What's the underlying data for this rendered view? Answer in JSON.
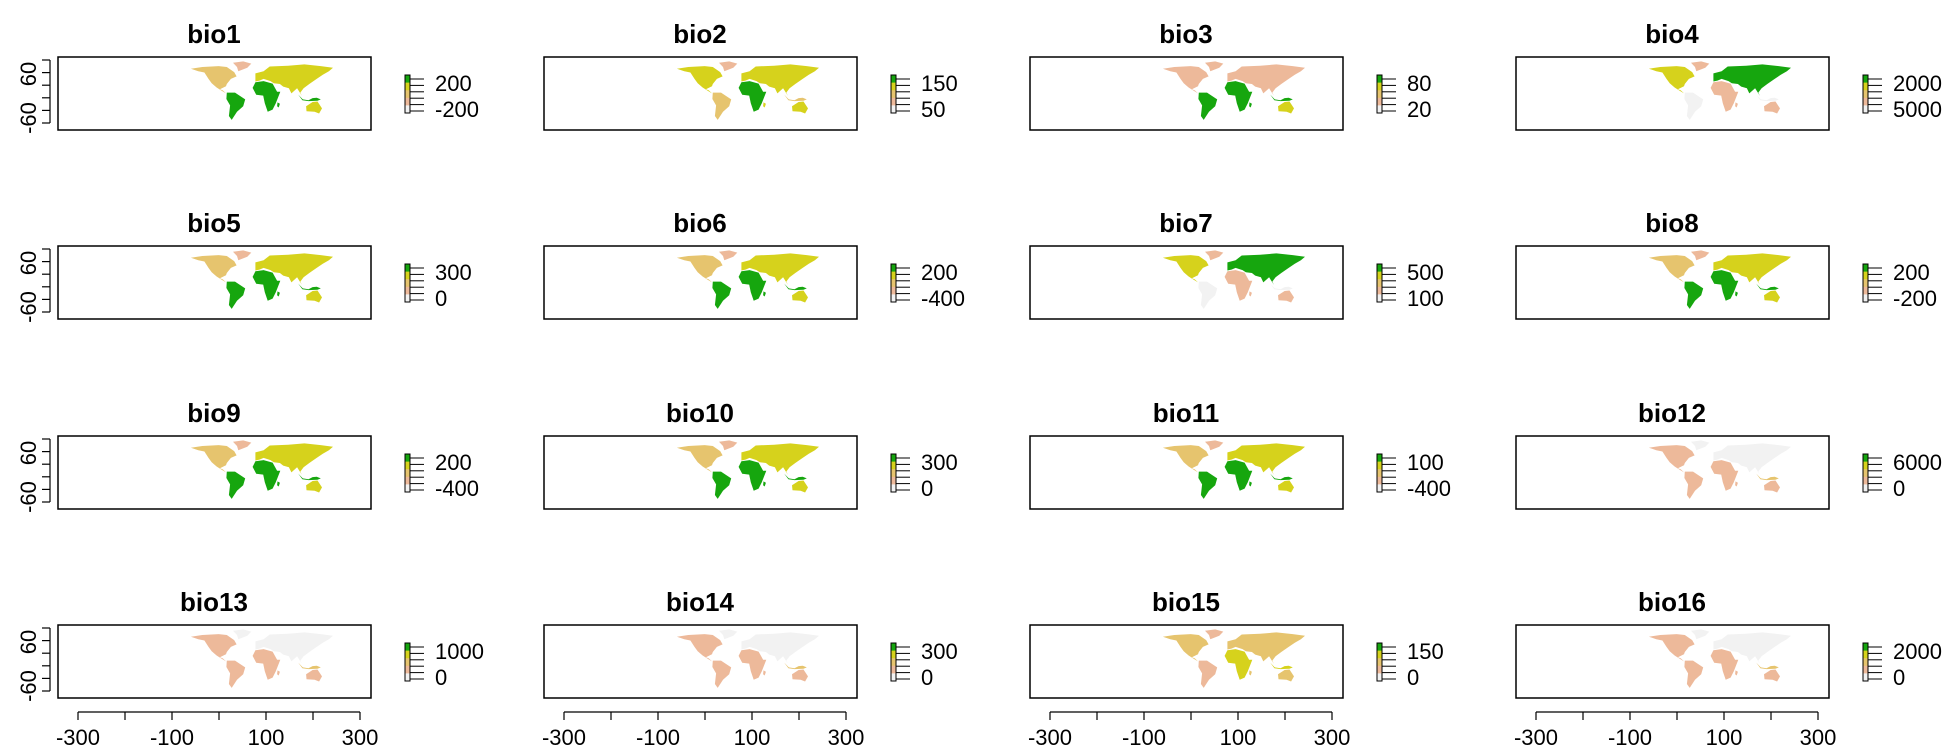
{
  "axis": {
    "x_ticks": [
      "-300",
      "-100",
      "100",
      "300"
    ],
    "y_ticks": [
      "60",
      "-60"
    ]
  },
  "palette": {
    "low": "#f2f2f2",
    "low_mid": "#edb99a",
    "mid": "#e6c46e",
    "high_mid": "#d6d21c",
    "high": "#16a60e",
    "frame": "#000000"
  },
  "panels": [
    {
      "title": "bio1",
      "legend": [
        "200",
        "-200"
      ],
      "pattern": "temp"
    },
    {
      "title": "bio2",
      "legend": [
        "150",
        "50"
      ],
      "pattern": "mixed"
    },
    {
      "title": "bio3",
      "legend": [
        "80",
        "20"
      ],
      "pattern": "tropics"
    },
    {
      "title": "bio4",
      "legend": [
        "2000",
        "5000"
      ],
      "pattern": "boreal"
    },
    {
      "title": "bio5",
      "legend": [
        "300",
        "0"
      ],
      "pattern": "temp"
    },
    {
      "title": "bio6",
      "legend": [
        "200",
        "-400"
      ],
      "pattern": "temp"
    },
    {
      "title": "bio7",
      "legend": [
        "500",
        "100"
      ],
      "pattern": "boreal"
    },
    {
      "title": "bio8",
      "legend": [
        "200",
        "-200"
      ],
      "pattern": "temp"
    },
    {
      "title": "bio9",
      "legend": [
        "200",
        "-400"
      ],
      "pattern": "temp"
    },
    {
      "title": "bio10",
      "legend": [
        "300",
        "0"
      ],
      "pattern": "temp"
    },
    {
      "title": "bio11",
      "legend": [
        "100",
        "-400"
      ],
      "pattern": "temp"
    },
    {
      "title": "bio12",
      "legend": [
        "6000",
        "0"
      ],
      "pattern": "precip"
    },
    {
      "title": "bio13",
      "legend": [
        "1000",
        "0"
      ],
      "pattern": "precip"
    },
    {
      "title": "bio14",
      "legend": [
        "300",
        "0"
      ],
      "pattern": "precip"
    },
    {
      "title": "bio15",
      "legend": [
        "150",
        "0"
      ],
      "pattern": "seasonal"
    },
    {
      "title": "bio16",
      "legend": [
        "2000",
        "0"
      ],
      "pattern": "precip"
    }
  ]
}
